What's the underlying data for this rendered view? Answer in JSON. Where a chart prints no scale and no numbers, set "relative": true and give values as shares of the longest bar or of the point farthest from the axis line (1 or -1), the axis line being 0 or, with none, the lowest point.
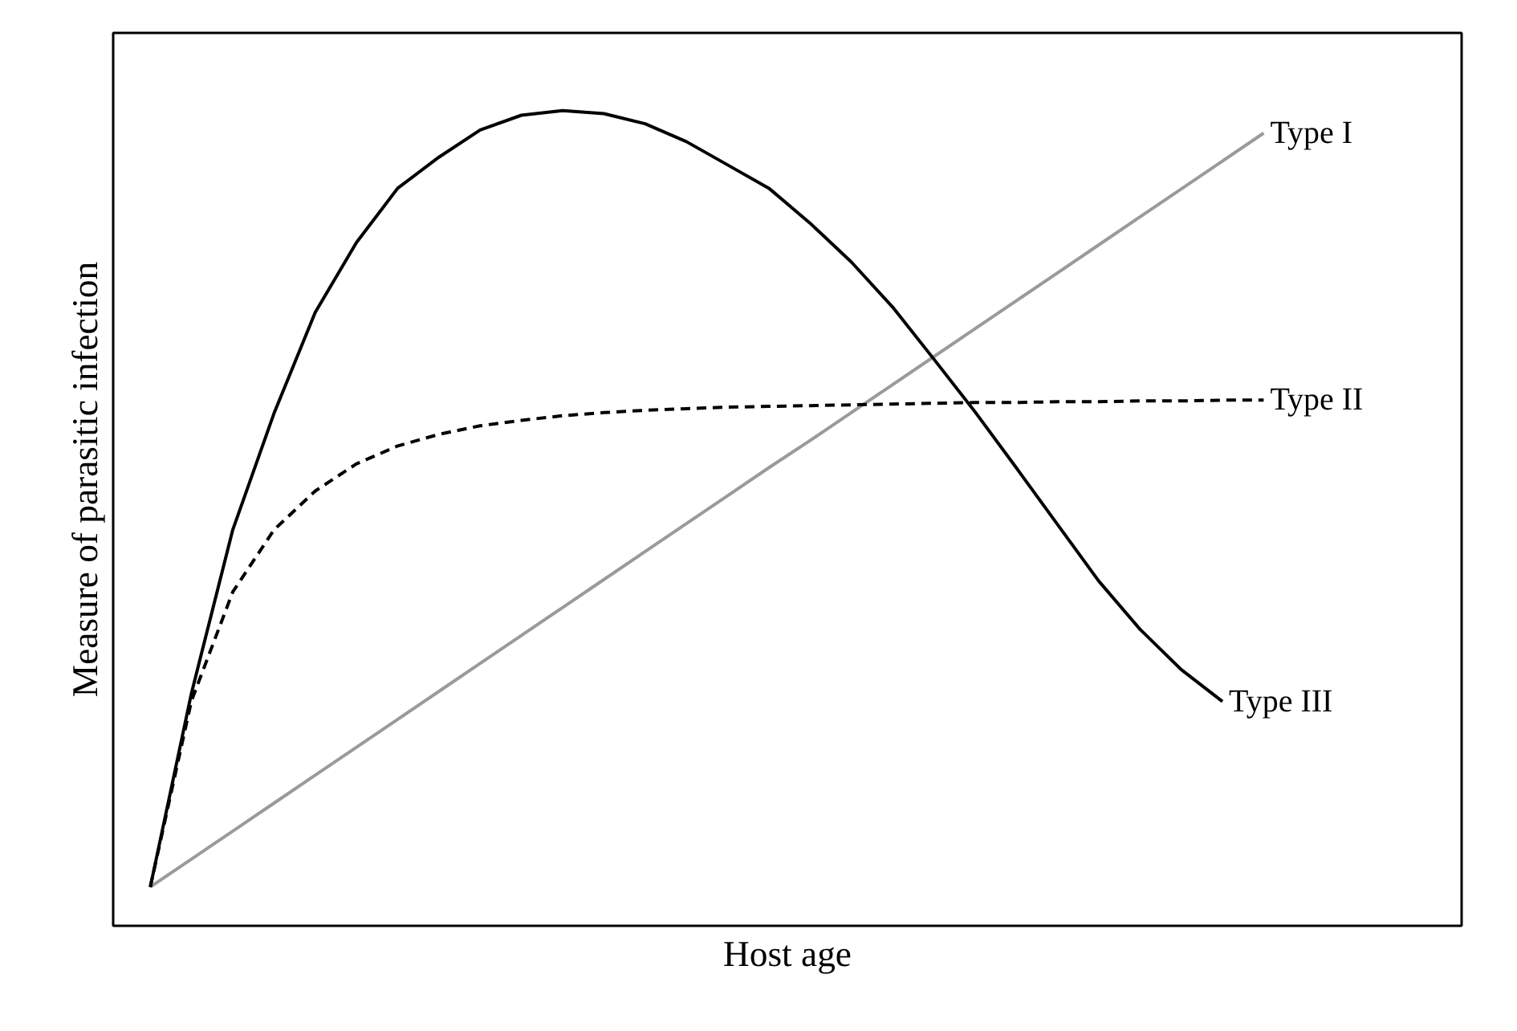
{
  "chart_data": {
    "type": "line",
    "relative": true,
    "xlabel": "Host age",
    "ylabel": "Measure of parasitic infection",
    "legend": false,
    "categories": [
      null,
      null,
      null,
      null,
      null,
      null,
      null,
      null,
      null,
      null,
      null,
      null,
      null,
      null,
      null,
      null,
      null,
      null,
      null,
      null,
      null,
      null,
      null,
      null,
      null,
      null,
      null,
      null
    ],
    "series": [
      {
        "name": "Type I",
        "color": "#9a9a9a",
        "line_style": "solid",
        "values": [
          0,
          0.036,
          0.072,
          0.108,
          0.144,
          0.18,
          0.216,
          0.252,
          0.288,
          0.324,
          0.36,
          0.396,
          0.432,
          0.468,
          0.504,
          0.54,
          0.575,
          0.611,
          0.647,
          0.683,
          0.719,
          0.755,
          0.791,
          0.827,
          0.863,
          0.899,
          0.935,
          0.971
        ]
      },
      {
        "name": "Type II",
        "color": "#000000",
        "line_style": "dashed",
        "values": [
          0,
          0.24,
          0.38,
          0.46,
          0.51,
          0.545,
          0.568,
          0.583,
          0.594,
          0.601,
          0.607,
          0.611,
          0.614,
          0.616,
          0.618,
          0.619,
          0.62,
          0.621,
          0.622,
          0.623,
          0.624,
          0.624,
          0.625,
          0.625,
          0.626,
          0.626,
          0.627,
          0.627
        ]
      },
      {
        "name": "Type III",
        "color": "#000000",
        "line_style": "solid",
        "values": [
          0,
          0.25,
          0.46,
          0.61,
          0.74,
          0.83,
          0.9,
          0.94,
          0.975,
          0.994,
          1.0,
          0.996,
          0.983,
          0.96,
          0.93,
          0.9,
          0.855,
          0.805,
          0.747,
          0.68,
          0.612,
          0.54,
          0.467,
          0.394,
          0.332,
          0.28,
          0.239,
          null
        ]
      }
    ]
  }
}
